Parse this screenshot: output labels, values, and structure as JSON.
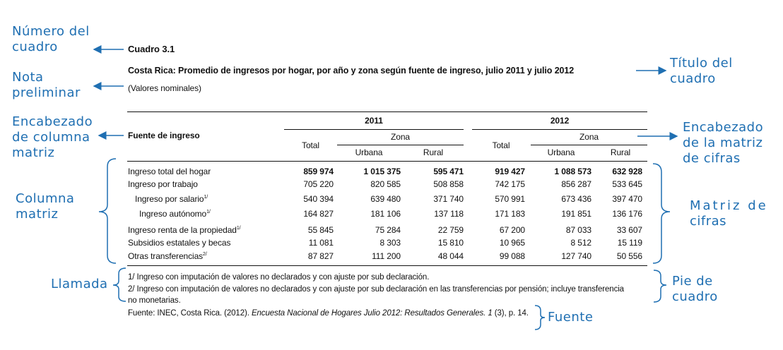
{
  "annotations": {
    "numero": [
      "Número del",
      "cuadro"
    ],
    "nota": [
      "Nota",
      "preliminar"
    ],
    "encabezado_col": [
      "Encabezado",
      "de columna",
      "matriz"
    ],
    "columna": [
      "Columna",
      "matriz"
    ],
    "llamada": [
      "Llamada"
    ],
    "titulo": [
      "Título del",
      "cuadro"
    ],
    "encabezado_matriz": [
      "Encabezado",
      "de la matriz",
      "de cifras"
    ],
    "matriz": [
      "Matriz de",
      "cifras"
    ],
    "pie": [
      "Pie de",
      "cuadro"
    ],
    "fuente": [
      "Fuente"
    ]
  },
  "table": {
    "number": "Cuadro 3.1",
    "title": "Costa Rica: Promedio de ingresos por hogar, por año y zona según fuente de ingreso, julio 2011 y julio 2012",
    "subtitle": "(Valores nominales)",
    "stub_header": "Fuente de ingreso",
    "years": [
      "2011",
      "2012"
    ],
    "total_label": "Total",
    "zona_label": "Zona",
    "urbana_label": "Urbana",
    "rural_label": "Rural",
    "rows": [
      {
        "label": "Ingreso total del hogar",
        "sup": "",
        "values": [
          "859 974",
          "1 015 375",
          "595 471",
          "919 427",
          "1 088 573",
          "632 928"
        ]
      },
      {
        "label": "Ingreso por trabajo",
        "sup": "",
        "values": [
          "705 220",
          "820 585",
          "508 858",
          "742 175",
          "856 287",
          "533 645"
        ]
      },
      {
        "label": "Ingreso por salario",
        "sup": "1/",
        "values": [
          "540 394",
          "639 480",
          "371 740",
          "570 991",
          "673 436",
          "397 470"
        ]
      },
      {
        "label": "Ingreso autónomo",
        "sup": "1/",
        "values": [
          "164 827",
          "181 106",
          "137 118",
          "171 183",
          "191 851",
          "136 176"
        ]
      },
      {
        "label": "Ingreso renta de la propiedad",
        "sup": "1/",
        "values": [
          "55 845",
          "75 284",
          "22 759",
          "67 200",
          "87 033",
          "33 607"
        ]
      },
      {
        "label": "Subsidios estatales y becas",
        "sup": "",
        "values": [
          "11 081",
          "8 303",
          "15 810",
          "10 965",
          "8 512",
          "15 119"
        ]
      },
      {
        "label": "Otras transferencias",
        "sup": "2/",
        "values": [
          "87 827",
          "111 200",
          "48 044",
          "99 088",
          "127 740",
          "50 556"
        ]
      }
    ],
    "notes": [
      "1/ Ingreso con imputación de valores no declarados y con ajuste por sub declaración.",
      "2/ Ingreso con imputación de valores no declarados y con ajuste por sub declaración en las transferencias por pensión; incluye transferencia",
      "no monetarias."
    ],
    "source_prefix": "Fuente: INEC, Costa Rica. (2012). ",
    "source_italic": "Encuesta Nacional de Hogares Julio 2012: Resultados Generales. 1",
    "source_suffix": " (3), p. 14."
  },
  "colors": {
    "annotation": "#1f6fb2",
    "text": "#111111"
  }
}
